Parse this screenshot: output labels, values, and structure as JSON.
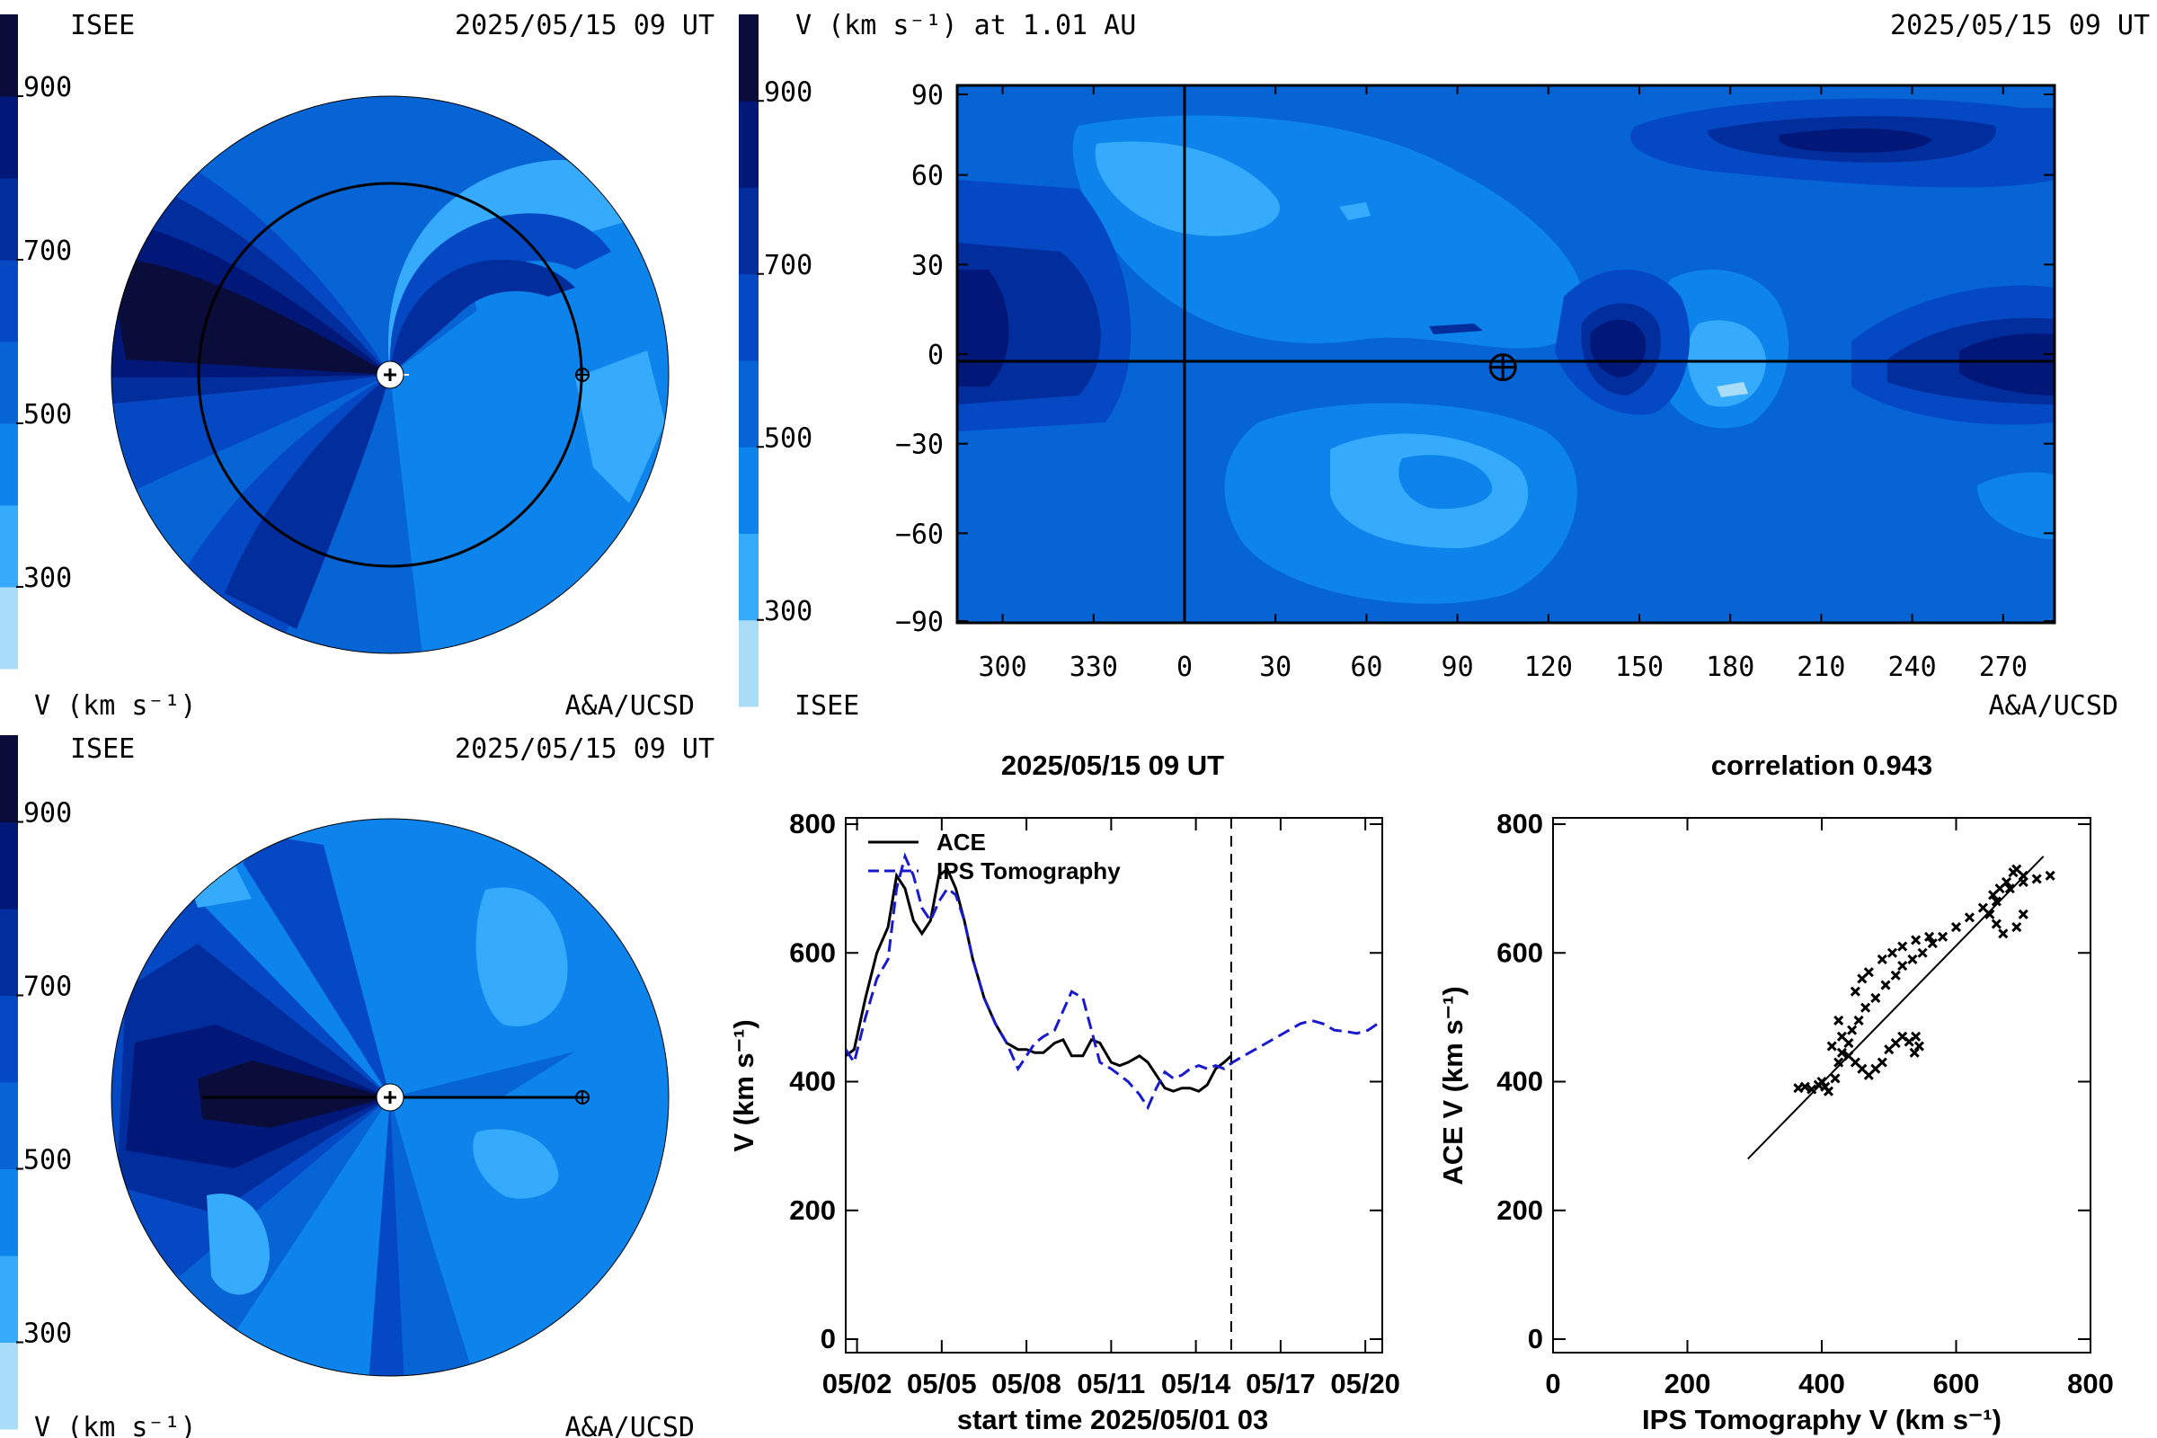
{
  "colors": {
    "levels": [
      "#a9dcf7",
      "#36abfb",
      "#0d84ec",
      "#0664d5",
      "#0548c4",
      "#022d9c",
      "#021878",
      "#0a0c3a"
    ],
    "ace_line": "#000000",
    "ips_line": "#1a1acd",
    "grid_line": "#000000"
  },
  "panel_ecliptic": {
    "label_left": "ISEE",
    "label_right": "2025/05/15 09 UT",
    "bottom_left": "V (km s⁻¹)",
    "bottom_right": "A&A/UCSD"
  },
  "panel_meridional": {
    "label_left": "ISEE",
    "label_right": "2025/05/15 09 UT",
    "bottom_left": "V (km s⁻¹)",
    "bottom_right": "A&A/UCSD"
  },
  "colorbar": {
    "ticks": [
      "900",
      "700",
      "500",
      "300"
    ]
  },
  "synoptic_map": {
    "title_left": "V (km s⁻¹) at 1.01 AU",
    "title_right": "2025/05/15 09 UT",
    "bottom_left": "ISEE",
    "bottom_right": "A&A/UCSD",
    "x_ticks": [
      "300",
      "330",
      "0",
      "30",
      "60",
      "90",
      "120",
      "150",
      "180",
      "210",
      "240",
      "270"
    ],
    "y_ticks": [
      "90",
      "60",
      "30",
      "0",
      "−30",
      "−60",
      "−90"
    ],
    "earth_longitude": 105,
    "earth_latitude": -2
  },
  "chart_data": [
    {
      "type": "line",
      "title": "2025/05/15 09 UT",
      "xlabel": "start time 2025/05/01 03",
      "ylabel": "V (km s⁻¹)",
      "x_ticks": [
        "05/02",
        "05/05",
        "05/08",
        "05/11",
        "05/14",
        "05/17",
        "05/20"
      ],
      "y_ticks": [
        "0",
        "200",
        "400",
        "600",
        "800"
      ],
      "ylim": [
        0,
        800
      ],
      "xlim_days": [
        0.6,
        19.6
      ],
      "current_time_day": 14.25,
      "legend": [
        "ACE",
        "IPS Tomography"
      ],
      "series": [
        {
          "name": "ACE",
          "x": [
            0.6,
            0.9,
            1.3,
            1.7,
            2.1,
            2.4,
            2.7,
            3.0,
            3.3,
            3.6,
            3.9,
            4.2,
            4.5,
            4.8,
            5.1,
            5.5,
            5.9,
            6.3,
            6.7,
            7.0,
            7.3,
            7.6,
            8.0,
            8.3,
            8.6,
            9.0,
            9.3,
            9.6,
            10.0,
            10.3,
            10.6,
            11.0,
            11.3,
            11.6,
            11.9,
            12.2,
            12.5,
            12.8,
            13.1,
            13.4,
            13.7,
            14.0,
            14.25
          ],
          "values": [
            440,
            450,
            530,
            600,
            640,
            720,
            700,
            650,
            630,
            650,
            720,
            730,
            700,
            650,
            590,
            530,
            490,
            460,
            450,
            450,
            445,
            445,
            460,
            465,
            440,
            440,
            465,
            460,
            430,
            425,
            430,
            440,
            430,
            410,
            390,
            385,
            390,
            390,
            385,
            395,
            420,
            430,
            440
          ]
        },
        {
          "name": "IPS Tomography",
          "x": [
            0.6,
            0.9,
            1.3,
            1.7,
            2.1,
            2.4,
            2.7,
            3.0,
            3.3,
            3.6,
            3.9,
            4.2,
            4.5,
            4.8,
            5.1,
            5.5,
            5.9,
            6.3,
            6.7,
            7.0,
            7.3,
            7.6,
            8.0,
            8.3,
            8.6,
            9.0,
            9.3,
            9.6,
            10.0,
            10.3,
            10.6,
            11.0,
            11.3,
            11.6,
            11.9,
            12.2,
            12.5,
            12.8,
            13.1,
            13.4,
            13.7,
            14.0,
            14.3,
            14.7,
            15.1,
            15.5,
            15.9,
            16.3,
            16.7,
            17.1,
            17.5,
            17.9,
            18.3,
            18.7,
            19.1,
            19.6
          ],
          "values": [
            450,
            430,
            500,
            560,
            590,
            700,
            750,
            720,
            670,
            650,
            680,
            700,
            690,
            650,
            590,
            530,
            490,
            460,
            420,
            440,
            460,
            470,
            480,
            510,
            540,
            530,
            480,
            430,
            420,
            410,
            400,
            380,
            360,
            390,
            415,
            405,
            410,
            420,
            425,
            420,
            425,
            420,
            430,
            440,
            450,
            460,
            470,
            480,
            490,
            495,
            490,
            480,
            478,
            475,
            480,
            495
          ]
        }
      ]
    },
    {
      "type": "scatter",
      "title": "correlation 0.943",
      "xlabel": "IPS Tomography V (km s⁻¹)",
      "ylabel": "ACE V (km s⁻¹)",
      "x_ticks": [
        "0",
        "200",
        "400",
        "600",
        "800"
      ],
      "y_ticks": [
        "0",
        "200",
        "400",
        "600",
        "800"
      ],
      "xlim": [
        0,
        800
      ],
      "ylim": [
        0,
        800
      ],
      "fit_line": [
        [
          290,
          280
        ],
        [
          730,
          750
        ]
      ],
      "points": [
        [
          365,
          390
        ],
        [
          375,
          392
        ],
        [
          385,
          388
        ],
        [
          395,
          395
        ],
        [
          405,
          392
        ],
        [
          410,
          385
        ],
        [
          400,
          400
        ],
        [
          420,
          405
        ],
        [
          425,
          430
        ],
        [
          430,
          445
        ],
        [
          440,
          440
        ],
        [
          450,
          430
        ],
        [
          460,
          420
        ],
        [
          470,
          410
        ],
        [
          480,
          420
        ],
        [
          490,
          430
        ],
        [
          500,
          450
        ],
        [
          510,
          460
        ],
        [
          520,
          470
        ],
        [
          530,
          462
        ],
        [
          540,
          470
        ],
        [
          545,
          455
        ],
        [
          538,
          445
        ],
        [
          440,
          460
        ],
        [
          445,
          480
        ],
        [
          455,
          495
        ],
        [
          465,
          515
        ],
        [
          480,
          530
        ],
        [
          495,
          550
        ],
        [
          510,
          565
        ],
        [
          520,
          580
        ],
        [
          535,
          590
        ],
        [
          550,
          600
        ],
        [
          565,
          615
        ],
        [
          580,
          625
        ],
        [
          600,
          640
        ],
        [
          620,
          655
        ],
        [
          640,
          670
        ],
        [
          655,
          690
        ],
        [
          665,
          700
        ],
        [
          675,
          710
        ],
        [
          685,
          725
        ],
        [
          690,
          730
        ],
        [
          700,
          720
        ],
        [
          720,
          715
        ],
        [
          740,
          720
        ],
        [
          700,
          660
        ],
        [
          690,
          640
        ],
        [
          670,
          630
        ],
        [
          660,
          645
        ],
        [
          650,
          660
        ],
        [
          660,
          680
        ],
        [
          680,
          700
        ],
        [
          700,
          710
        ],
        [
          425,
          495
        ],
        [
          430,
          470
        ],
        [
          415,
          455
        ],
        [
          450,
          540
        ],
        [
          460,
          560
        ],
        [
          470,
          570
        ],
        [
          490,
          590
        ],
        [
          505,
          600
        ],
        [
          520,
          610
        ],
        [
          540,
          620
        ],
        [
          560,
          625
        ]
      ]
    }
  ]
}
